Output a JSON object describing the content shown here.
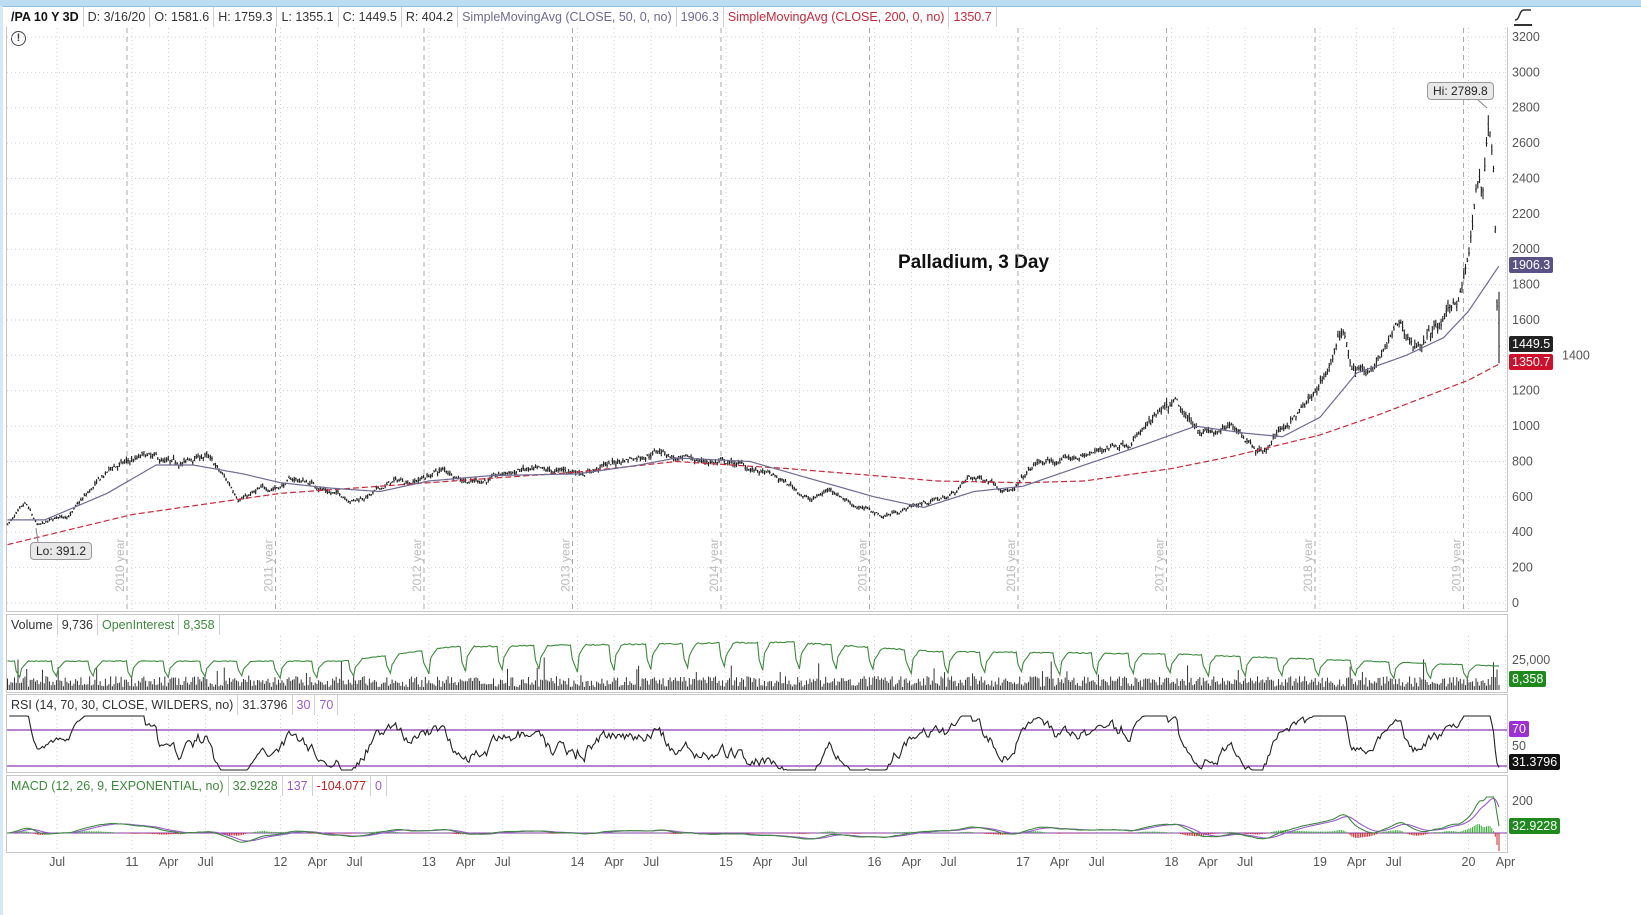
{
  "header": {
    "symbol": "/PA 10 Y 3D",
    "date": "D: 3/16/20",
    "open": "O: 1581.6",
    "high": "H: 1759.3",
    "low": "L: 1355.1",
    "close": "C: 1449.5",
    "range": "R: 404.2",
    "sma50_label": "SimpleMovingAvg (CLOSE, 50, 0, no)",
    "sma50_value": "1906.3",
    "sma200_label": "SimpleMovingAvg (CLOSE, 200, 0, no)",
    "sma200_value": "1350.7"
  },
  "colors": {
    "sma50": "#6e6a92",
    "sma200": "#c8283c",
    "price": "#222222",
    "oi": "#3d8a3d",
    "rsi_bounds": "#8a3ab0",
    "macd_value": "#3d8a3d",
    "macd_avg": "#9a5ad0",
    "hist_pos": "#33aa33",
    "hist_neg": "#cc2020",
    "vol": "#333333"
  },
  "icons": {
    "alert": "exclamation-circle-icon",
    "style": "chart-style-icon"
  },
  "chart_data": [
    {
      "type": "line",
      "title": "Palladium, 3 Day",
      "ylim": [
        0,
        3200
      ],
      "yticks": [
        "3200",
        "3000",
        "2800",
        "2600",
        "2400",
        "2200",
        "2000",
        "1800",
        "1600",
        "1400",
        "1200",
        "1000",
        "800",
        "600",
        "400",
        "200",
        "0"
      ],
      "grid": true,
      "hi_label": "Hi: 2789.8",
      "lo_label": "Lo: 391.2",
      "year_labels": [
        "2010 year",
        "2011 year",
        "2012 year",
        "2013 year",
        "2014 year",
        "2015 year",
        "2016 year",
        "2017 year",
        "2018 year",
        "2019 year"
      ],
      "last_bar": {
        "date": "2020-03-16",
        "open": 1581.6,
        "high": 1759.3,
        "low": 1355.1,
        "close": 1449.5
      },
      "close_approx": [
        [
          "2010-03-01",
          450
        ],
        [
          "2010-04-15",
          540
        ],
        [
          "2010-05-15",
          420
        ],
        [
          "2010-08-01",
          500
        ],
        [
          "2010-11-15",
          760
        ],
        [
          "2011-02-01",
          820
        ],
        [
          "2011-04-15",
          760
        ],
        [
          "2011-07-01",
          830
        ],
        [
          "2011-08-15",
          700
        ],
        [
          "2011-09-20",
          600
        ],
        [
          "2011-12-01",
          640
        ],
        [
          "2012-02-01",
          700
        ],
        [
          "2012-03-15",
          680
        ],
        [
          "2012-05-15",
          620
        ],
        [
          "2012-07-01",
          590
        ],
        [
          "2012-08-15",
          620
        ],
        [
          "2012-10-01",
          680
        ],
        [
          "2012-12-01",
          700
        ],
        [
          "2013-02-01",
          750
        ],
        [
          "2013-04-15",
          700
        ],
        [
          "2013-06-15",
          710
        ],
        [
          "2013-08-15",
          750
        ],
        [
          "2013-10-15",
          720
        ],
        [
          "2014-01-01",
          740
        ],
        [
          "2014-04-15",
          800
        ],
        [
          "2014-07-20",
          880
        ],
        [
          "2014-09-15",
          800
        ],
        [
          "2014-12-01",
          800
        ],
        [
          "2015-02-01",
          780
        ],
        [
          "2015-04-15",
          720
        ],
        [
          "2015-06-15",
          650
        ],
        [
          "2015-08-01",
          580
        ],
        [
          "2015-09-15",
          650
        ],
        [
          "2015-11-15",
          560
        ],
        [
          "2016-01-20",
          490
        ],
        [
          "2016-04-15",
          560
        ],
        [
          "2016-07-01",
          600
        ],
        [
          "2016-08-20",
          700
        ],
        [
          "2016-10-15",
          700
        ],
        [
          "2016-12-10",
          640
        ],
        [
          "2017-02-01",
          780
        ],
        [
          "2017-04-15",
          800
        ],
        [
          "2017-07-01",
          850
        ],
        [
          "2017-09-15",
          930
        ],
        [
          "2017-11-15",
          1020
        ],
        [
          "2018-01-10",
          1100
        ],
        [
          "2018-02-10",
          1000
        ],
        [
          "2018-04-15",
          960
        ],
        [
          "2018-06-15",
          980
        ],
        [
          "2018-08-15",
          870
        ],
        [
          "2018-10-01",
          1000
        ],
        [
          "2018-12-15",
          1150
        ],
        [
          "2019-01-20",
          1320
        ],
        [
          "2019-03-01",
          1550
        ],
        [
          "2019-03-20",
          1350
        ],
        [
          "2019-05-10",
          1300
        ],
        [
          "2019-07-15",
          1560
        ],
        [
          "2019-08-20",
          1450
        ],
        [
          "2019-11-10",
          1600
        ],
        [
          "2019-12-10",
          1750
        ],
        [
          "2020-01-01",
          1950
        ],
        [
          "2020-01-15",
          2200
        ],
        [
          "2020-01-25",
          2400
        ],
        [
          "2020-02-05",
          2250
        ],
        [
          "2020-02-20",
          2700
        ],
        [
          "2020-02-28",
          2500
        ],
        [
          "2020-03-05",
          2350
        ],
        [
          "2020-03-10",
          1700
        ],
        [
          "2020-03-16",
          1449.5
        ]
      ],
      "sma50_approx": [
        [
          "2010-03-01",
          470
        ],
        [
          "2010-06-01",
          470
        ],
        [
          "2010-11-01",
          620
        ],
        [
          "2011-03-01",
          780
        ],
        [
          "2011-06-01",
          780
        ],
        [
          "2011-10-01",
          730
        ],
        [
          "2012-01-01",
          680
        ],
        [
          "2012-05-01",
          650
        ],
        [
          "2012-09-01",
          630
        ],
        [
          "2013-01-01",
          690
        ],
        [
          "2013-06-01",
          720
        ],
        [
          "2014-01-01",
          730
        ],
        [
          "2014-06-01",
          780
        ],
        [
          "2014-09-01",
          820
        ],
        [
          "2015-03-01",
          800
        ],
        [
          "2015-08-01",
          700
        ],
        [
          "2016-01-01",
          600
        ],
        [
          "2016-05-01",
          540
        ],
        [
          "2016-09-01",
          630
        ],
        [
          "2017-01-01",
          660
        ],
        [
          "2017-06-01",
          780
        ],
        [
          "2017-11-01",
          900
        ],
        [
          "2018-03-01",
          1000
        ],
        [
          "2018-07-01",
          960
        ],
        [
          "2018-10-01",
          940
        ],
        [
          "2019-01-01",
          1050
        ],
        [
          "2019-04-01",
          1300
        ],
        [
          "2019-08-01",
          1400
        ],
        [
          "2019-11-01",
          1500
        ],
        [
          "2020-01-01",
          1650
        ],
        [
          "2020-03-16",
          1906.3
        ]
      ],
      "sma200_approx": [
        [
          "2010-03-01",
          330
        ],
        [
          "2011-01-01",
          500
        ],
        [
          "2012-01-01",
          620
        ],
        [
          "2013-01-01",
          680
        ],
        [
          "2014-01-01",
          740
        ],
        [
          "2014-09-01",
          800
        ],
        [
          "2015-06-01",
          760
        ],
        [
          "2016-01-01",
          720
        ],
        [
          "2016-06-01",
          690
        ],
        [
          "2017-01-01",
          680
        ],
        [
          "2017-06-01",
          690
        ],
        [
          "2018-01-01",
          760
        ],
        [
          "2018-06-01",
          830
        ],
        [
          "2019-01-01",
          950
        ],
        [
          "2019-06-01",
          1070
        ],
        [
          "2020-01-01",
          1260
        ],
        [
          "2020-03-16",
          1350.7
        ]
      ],
      "right_badges": {
        "sma50": "1906.3",
        "close": "1449.5",
        "sma200": "1350.7"
      }
    },
    {
      "type": "bar",
      "title": "Volume",
      "volume": "9,736",
      "oi_label": "OpenInterest",
      "oi_value": "8,358",
      "ytick": "25,000"
    },
    {
      "type": "line",
      "title": "RSI (14, 70, 30, CLOSE, WILDERS, no)",
      "value": "31.3796",
      "oversold": "30",
      "overbought": "70",
      "mid_tick": "50"
    },
    {
      "type": "line",
      "title": "MACD (12, 26, 9, EXPONENTIAL, no)",
      "value": "32.9228",
      "avg": "137",
      "diff": "-104.077",
      "zero": "0",
      "ytick": "200"
    }
  ],
  "x_axis": [
    [
      "Jul",
      "2010-07-01"
    ],
    [
      "11",
      "2011-01-01"
    ],
    [
      "Apr",
      "2011-04-01"
    ],
    [
      "Jul",
      "2011-07-01"
    ],
    [
      "12",
      "2012-01-01"
    ],
    [
      "Apr",
      "2012-04-01"
    ],
    [
      "Jul",
      "2012-07-01"
    ],
    [
      "13",
      "2013-01-01"
    ],
    [
      "Apr",
      "2013-04-01"
    ],
    [
      "Jul",
      "2013-07-01"
    ],
    [
      "14",
      "2014-01-01"
    ],
    [
      "Apr",
      "2014-04-01"
    ],
    [
      "Jul",
      "2014-07-01"
    ],
    [
      "15",
      "2015-01-01"
    ],
    [
      "Apr",
      "2015-04-01"
    ],
    [
      "Jul",
      "2015-07-01"
    ],
    [
      "16",
      "2016-01-01"
    ],
    [
      "Apr",
      "2016-04-01"
    ],
    [
      "Jul",
      "2016-07-01"
    ],
    [
      "17",
      "2017-01-01"
    ],
    [
      "Apr",
      "2017-04-01"
    ],
    [
      "Jul",
      "2017-07-01"
    ],
    [
      "18",
      "2018-01-01"
    ],
    [
      "Apr",
      "2018-04-01"
    ],
    [
      "Jul",
      "2018-07-01"
    ],
    [
      "19",
      "2019-01-01"
    ],
    [
      "Apr",
      "2019-04-01"
    ],
    [
      "Jul",
      "2019-07-01"
    ],
    [
      "20",
      "2020-01-01"
    ],
    [
      "Apr",
      "2020-04-01"
    ]
  ]
}
